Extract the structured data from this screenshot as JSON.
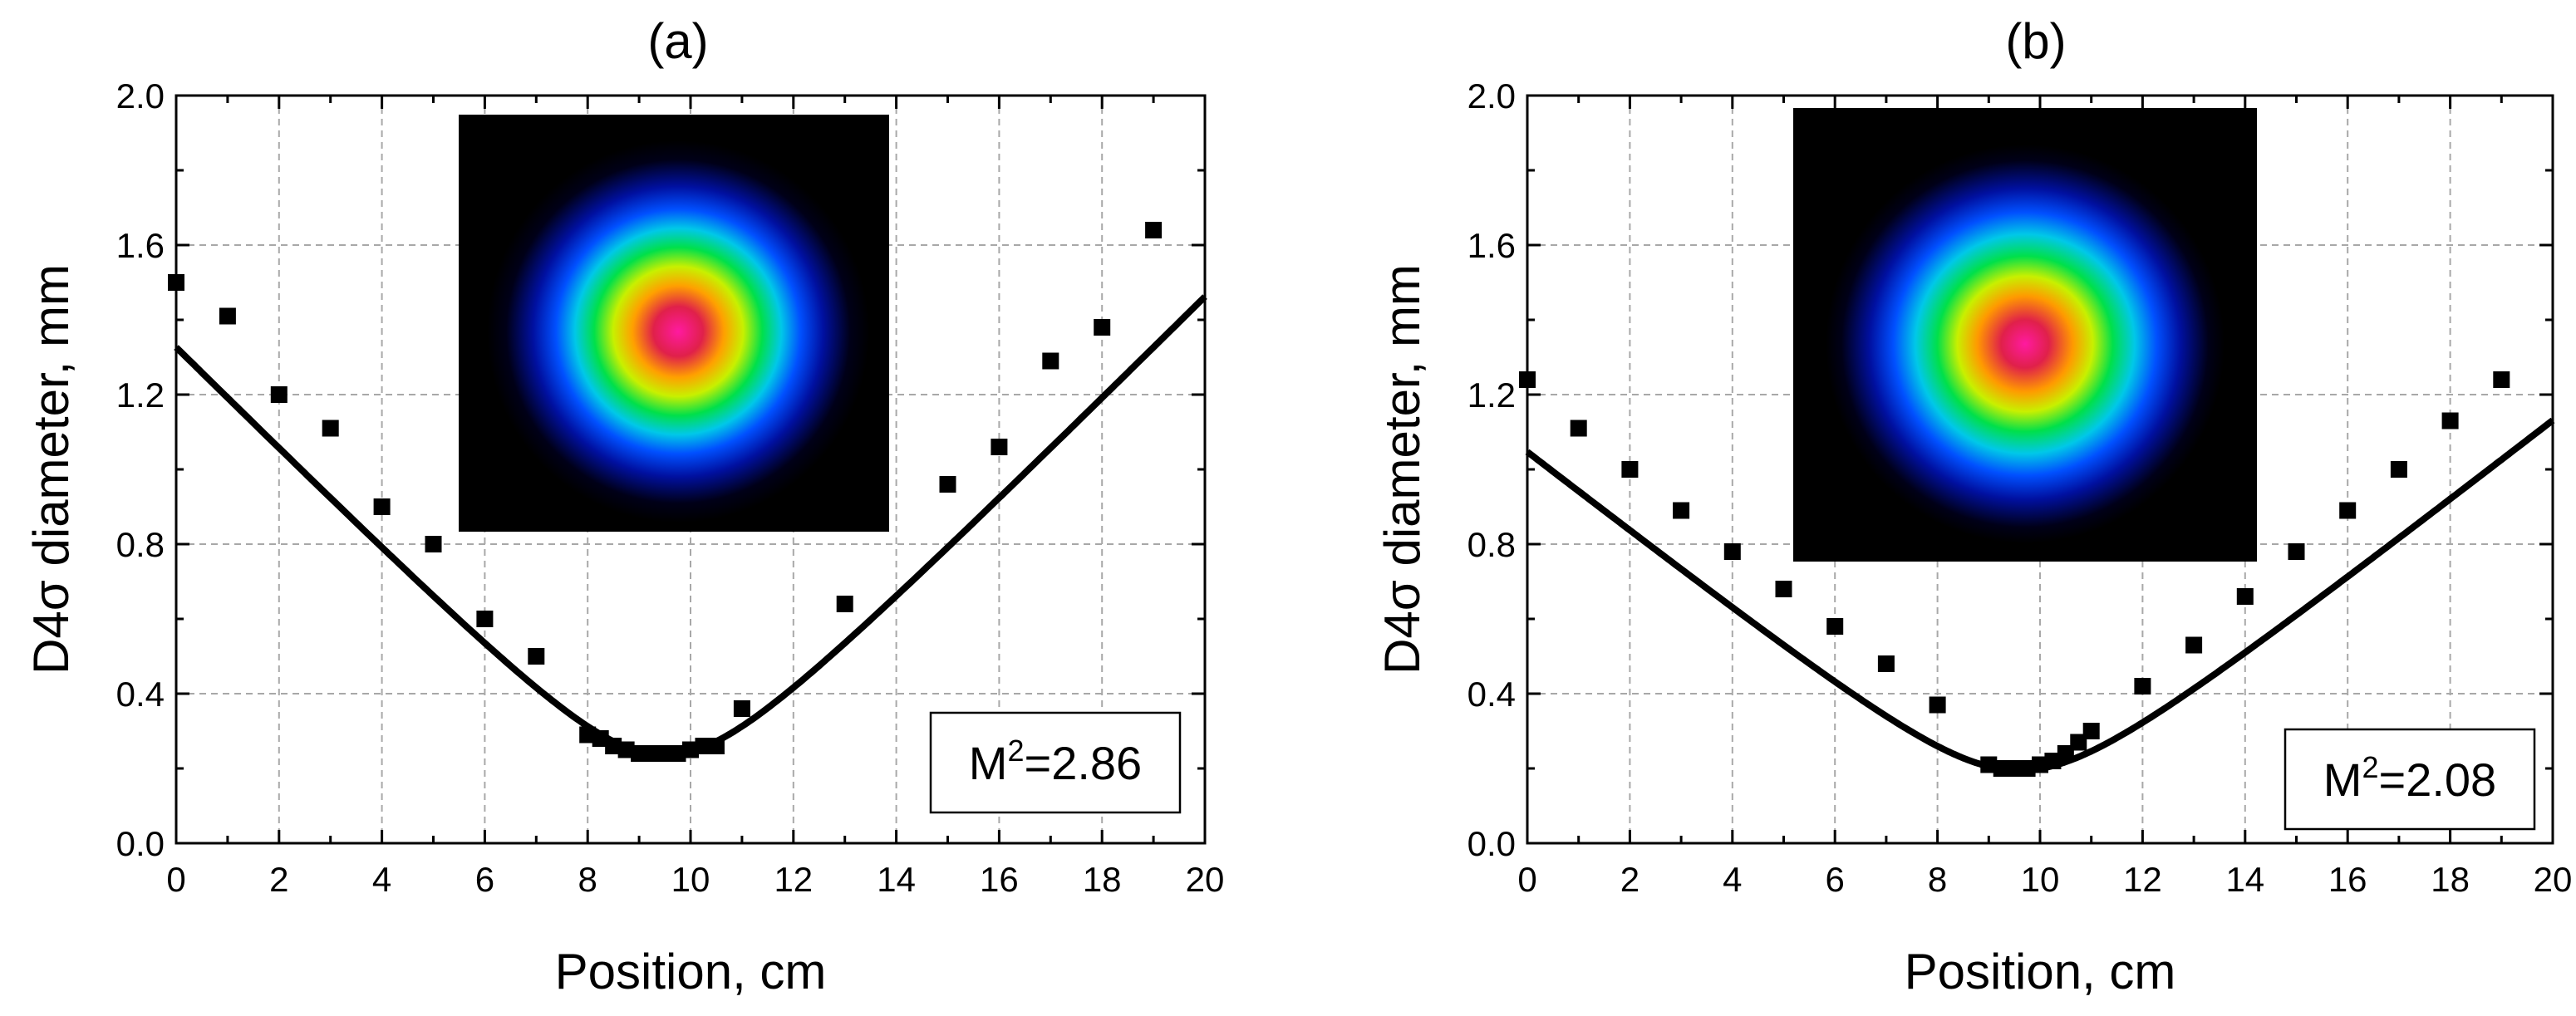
{
  "chart_data": [
    {
      "type": "scatter",
      "title": "(a)",
      "xlabel": "Position, cm",
      "ylabel": "D4σ diameter, mm",
      "xlim": [
        0,
        20
      ],
      "ylim": [
        0.0,
        2.0
      ],
      "x_ticks": [
        "0",
        "2",
        "4",
        "6",
        "8",
        "10",
        "12",
        "14",
        "16",
        "18",
        "20"
      ],
      "y_ticks": [
        "0.0",
        "0.4",
        "0.8",
        "1.2",
        "1.6",
        "2.0"
      ],
      "grid": true,
      "annotation": {
        "prefix": "M",
        "sup": "2",
        "value": "=2.86",
        "placement": "lower-right"
      },
      "inset": {
        "type": "beam-profile-image",
        "placement": "top-center"
      },
      "series": [
        {
          "kind": "points",
          "x": [
            0,
            1,
            2,
            3,
            4,
            5,
            6,
            7,
            8,
            8.25,
            8.5,
            8.75,
            9,
            9.25,
            9.5,
            9.75,
            10,
            10.25,
            10.5,
            11,
            13,
            15,
            16,
            17,
            18,
            19
          ],
          "y": [
            1.5,
            1.41,
            1.2,
            1.11,
            0.9,
            0.8,
            0.6,
            0.5,
            0.29,
            0.28,
            0.26,
            0.25,
            0.24,
            0.24,
            0.24,
            0.24,
            0.25,
            0.26,
            0.26,
            0.36,
            0.64,
            0.96,
            1.06,
            1.29,
            1.38,
            1.64
          ]
        },
        {
          "kind": "fit",
          "model": "gaussian-beam",
          "w0": 0.235,
          "z0": 9.5,
          "zR": 1.71
        }
      ]
    },
    {
      "type": "scatter",
      "title": "(b)",
      "xlabel": "Position, cm",
      "ylabel": "D4σ diameter, mm",
      "xlim": [
        0,
        20
      ],
      "ylim": [
        0.0,
        2.0
      ],
      "x_ticks": [
        "0",
        "2",
        "4",
        "6",
        "8",
        "10",
        "12",
        "14",
        "16",
        "18",
        "20"
      ],
      "y_ticks": [
        "0.0",
        "0.4",
        "0.8",
        "1.2",
        "1.6",
        "2.0"
      ],
      "grid": true,
      "annotation": {
        "prefix": "M",
        "sup": "2",
        "value": "=2.08",
        "placement": "lower-right"
      },
      "inset": {
        "type": "beam-profile-image",
        "placement": "top-center"
      },
      "series": [
        {
          "kind": "points",
          "x": [
            0,
            1,
            2,
            3,
            4,
            5,
            6,
            7,
            8,
            9,
            9.25,
            9.5,
            9.75,
            10,
            10.25,
            10.5,
            10.75,
            11,
            12,
            13,
            14,
            15,
            16,
            17,
            18,
            19
          ],
          "y": [
            1.24,
            1.11,
            1.0,
            0.89,
            0.78,
            0.68,
            0.58,
            0.48,
            0.37,
            0.21,
            0.2,
            0.2,
            0.2,
            0.21,
            0.22,
            0.24,
            0.27,
            0.3,
            0.42,
            0.53,
            0.66,
            0.78,
            0.89,
            1.0,
            1.13,
            1.24
          ]
        },
        {
          "kind": "fit",
          "model": "gaussian-beam",
          "w0": 0.195,
          "z0": 9.6,
          "zR": 1.82
        }
      ]
    }
  ]
}
